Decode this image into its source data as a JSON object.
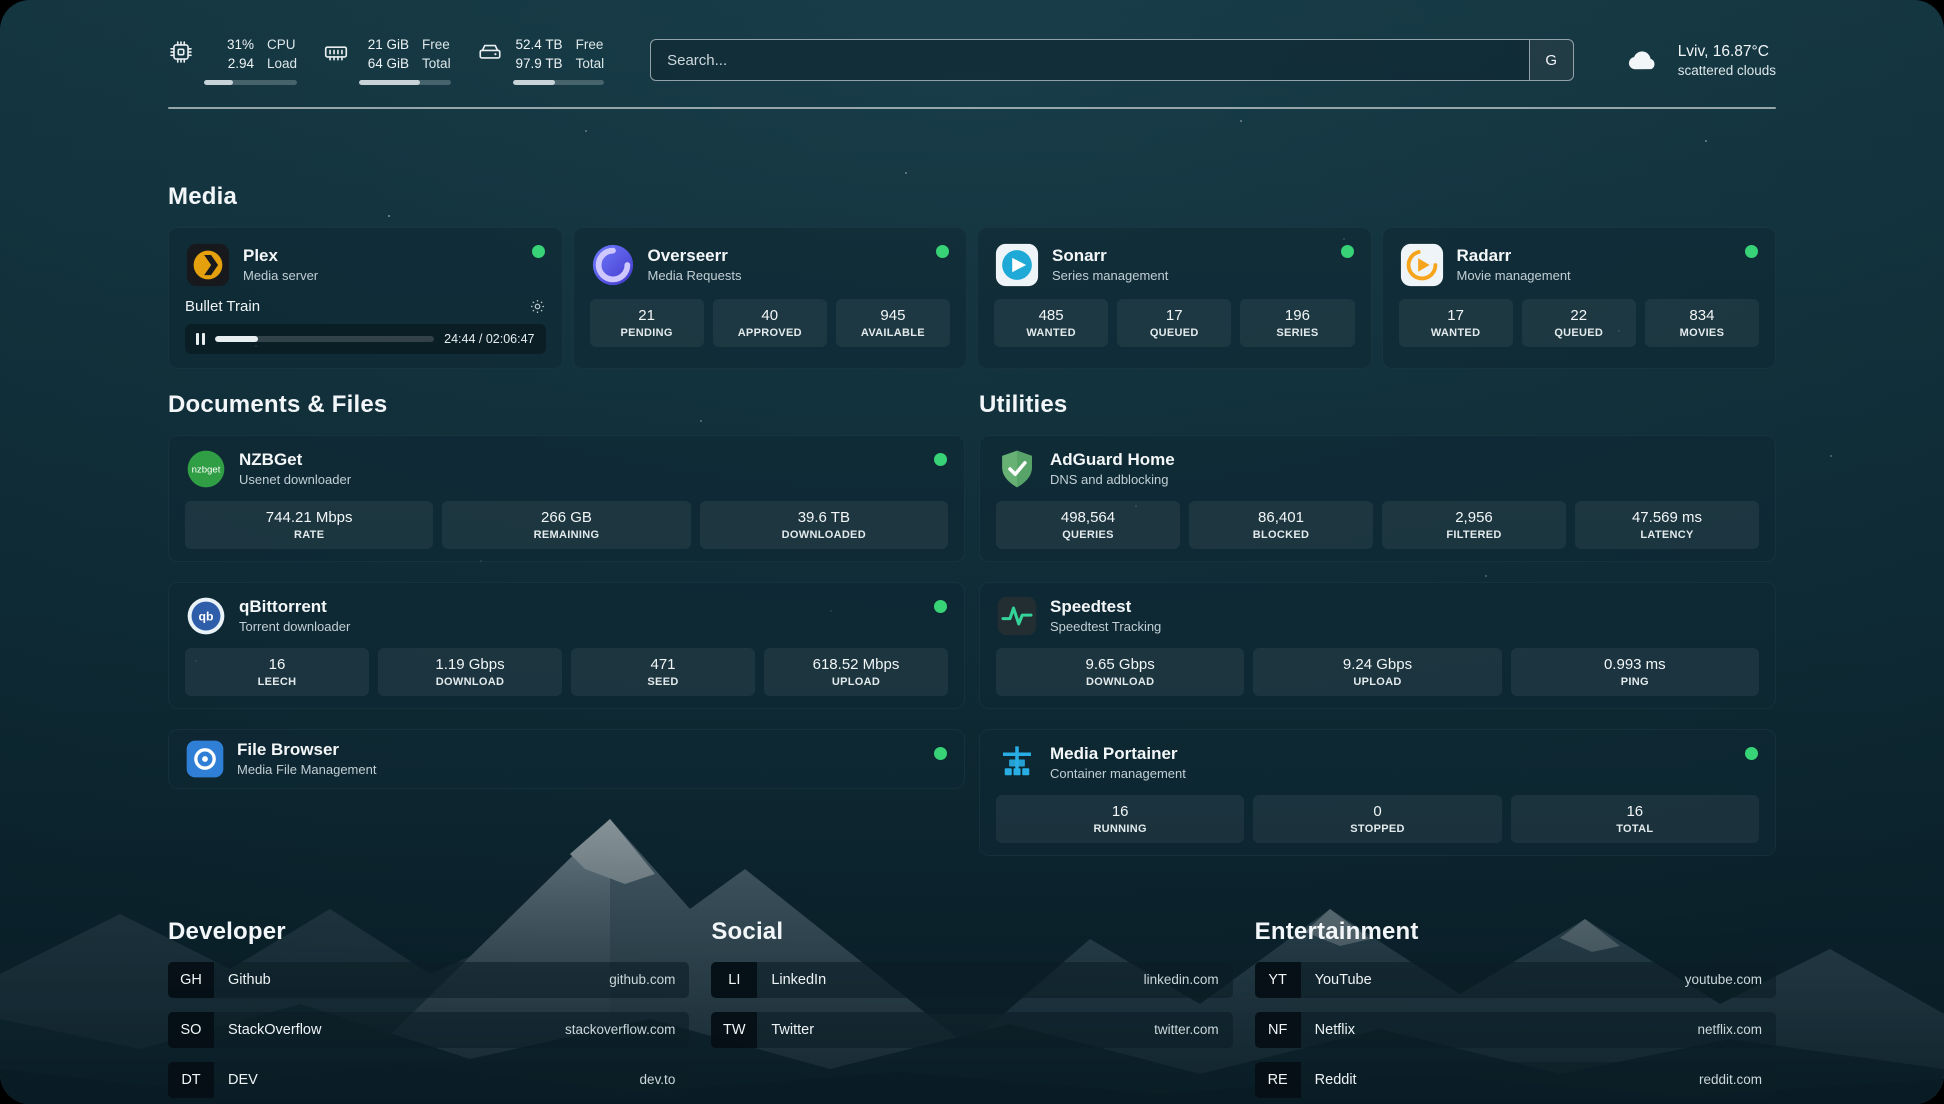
{
  "topbar": {
    "cpu": {
      "value": "31%",
      "sub": "2.94",
      "label_top": "CPU",
      "label_bottom": "Load",
      "percent": 31
    },
    "memory": {
      "value": "21 GiB",
      "sub": "64 GiB",
      "label_top": "Free",
      "label_bottom": "Total",
      "percent": 67
    },
    "storage": {
      "value": "52.4 TB",
      "sub": "97.9 TB",
      "label_top": "Free",
      "label_bottom": "Total",
      "percent": 46
    },
    "search": {
      "placeholder": "Search...",
      "engine_badge": "G"
    },
    "weather": {
      "location": "Lviv, 16.87°C",
      "condition": "scattered clouds"
    }
  },
  "media": {
    "title": "Media",
    "plex": {
      "name": "Plex",
      "subtitle": "Media server",
      "now_playing": "Bullet Train",
      "time": "24:44 / 02:06:47",
      "progress_percent": 19.5
    },
    "overseerr": {
      "name": "Overseerr",
      "subtitle": "Media Requests",
      "stats": [
        {
          "value": "21",
          "label": "PENDING"
        },
        {
          "value": "40",
          "label": "APPROVED"
        },
        {
          "value": "945",
          "label": "AVAILABLE"
        }
      ]
    },
    "sonarr": {
      "name": "Sonarr",
      "subtitle": "Series management",
      "stats": [
        {
          "value": "485",
          "label": "WANTED"
        },
        {
          "value": "17",
          "label": "QUEUED"
        },
        {
          "value": "196",
          "label": "SERIES"
        }
      ]
    },
    "radarr": {
      "name": "Radarr",
      "subtitle": "Movie management",
      "stats": [
        {
          "value": "17",
          "label": "WANTED"
        },
        {
          "value": "22",
          "label": "QUEUED"
        },
        {
          "value": "834",
          "label": "MOVIES"
        }
      ]
    }
  },
  "documents": {
    "title": "Documents & Files",
    "nzbget": {
      "name": "NZBGet",
      "subtitle": "Usenet downloader",
      "stats": [
        {
          "value": "744.21 Mbps",
          "label": "RATE"
        },
        {
          "value": "266 GB",
          "label": "REMAINING"
        },
        {
          "value": "39.6 TB",
          "label": "DOWNLOADED"
        }
      ]
    },
    "qbittorrent": {
      "name": "qBittorrent",
      "subtitle": "Torrent downloader",
      "stats": [
        {
          "value": "16",
          "label": "LEECH"
        },
        {
          "value": "1.19 Gbps",
          "label": "DOWNLOAD"
        },
        {
          "value": "471",
          "label": "SEED"
        },
        {
          "value": "618.52 Mbps",
          "label": "UPLOAD"
        }
      ]
    },
    "filebrowser": {
      "name": "File Browser",
      "subtitle": "Media File Management"
    }
  },
  "utilities": {
    "title": "Utilities",
    "adguard": {
      "name": "AdGuard Home",
      "subtitle": "DNS and adblocking",
      "stats": [
        {
          "value": "498,564",
          "label": "QUERIES"
        },
        {
          "value": "86,401",
          "label": "BLOCKED"
        },
        {
          "value": "2,956",
          "label": "FILTERED"
        },
        {
          "value": "47.569 ms",
          "label": "LATENCY"
        }
      ]
    },
    "speedtest": {
      "name": "Speedtest",
      "subtitle": "Speedtest Tracking",
      "stats": [
        {
          "value": "9.65 Gbps",
          "label": "DOWNLOAD"
        },
        {
          "value": "9.24 Gbps",
          "label": "UPLOAD"
        },
        {
          "value": "0.993 ms",
          "label": "PING"
        }
      ]
    },
    "portainer": {
      "name": "Media Portainer",
      "subtitle": "Container management",
      "stats": [
        {
          "value": "16",
          "label": "RUNNING"
        },
        {
          "value": "0",
          "label": "STOPPED"
        },
        {
          "value": "16",
          "label": "TOTAL"
        }
      ]
    }
  },
  "bookmarks": {
    "developer": {
      "title": "Developer",
      "links": [
        {
          "abbr": "GH",
          "name": "Github",
          "url": "github.com"
        },
        {
          "abbr": "SO",
          "name": "StackOverflow",
          "url": "stackoverflow.com"
        },
        {
          "abbr": "DT",
          "name": "DEV",
          "url": "dev.to"
        }
      ]
    },
    "social": {
      "title": "Social",
      "links": [
        {
          "abbr": "LI",
          "name": "LinkedIn",
          "url": "linkedin.com"
        },
        {
          "abbr": "TW",
          "name": "Twitter",
          "url": "twitter.com"
        }
      ]
    },
    "entertainment": {
      "title": "Entertainment",
      "links": [
        {
          "abbr": "YT",
          "name": "YouTube",
          "url": "youtube.com"
        },
        {
          "abbr": "NF",
          "name": "Netflix",
          "url": "netflix.com"
        },
        {
          "abbr": "RE",
          "name": "Reddit",
          "url": "reddit.com"
        }
      ]
    }
  },
  "colors": {
    "status_online": "#38d277",
    "plex_amber": "#e5a00d"
  }
}
